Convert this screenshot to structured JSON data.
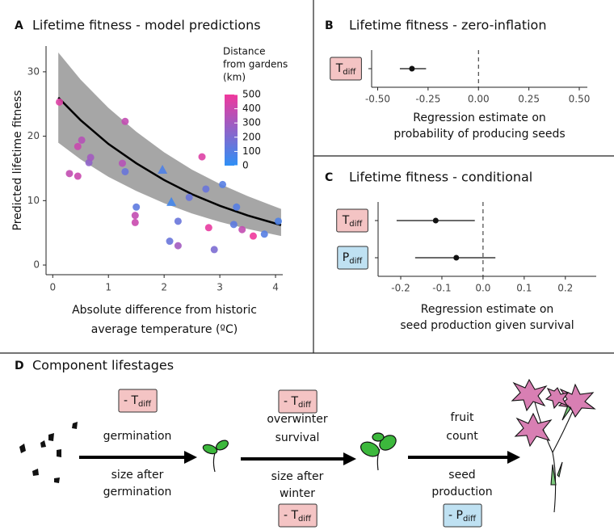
{
  "chart_data": [
    {
      "type": "scatter",
      "letter": "A",
      "title": "Lifetime fitness - model predictions",
      "x_label": [
        "Absolute difference from historic",
        "average temperature (ºC)"
      ],
      "y_label": "Predicted lifetime fitness",
      "xlim": [
        -0.12,
        4.13
      ],
      "ylim": [
        -1.5,
        34
      ],
      "xticks": [
        0,
        1,
        2,
        3,
        4
      ],
      "yticks": [
        0,
        10,
        20,
        30
      ],
      "colorbar": {
        "title": [
          "Distance",
          "from gardens",
          "(km)"
        ],
        "lim": [
          0,
          500
        ],
        "ticks": [
          0,
          100,
          200,
          300,
          400,
          500
        ],
        "colors": [
          "#2f8ff5",
          "#f0389c"
        ]
      },
      "series": [
        {
          "marker": "circle",
          "x": [
            0.12,
            0.3,
            0.45,
            0.52,
            0.45,
            0.65,
            0.68,
            1.3,
            1.25,
            1.3,
            1.5,
            1.48,
            1.48,
            2.1,
            2.25,
            2.25,
            2.45,
            2.68,
            2.75,
            2.8,
            2.9,
            3.05,
            3.25,
            3.3,
            3.4,
            3.6,
            3.8,
            4.05
          ],
          "values": [
            25.3,
            14.2,
            18.4,
            19.4,
            13.8,
            15.9,
            16.7,
            22.3,
            15.8,
            14.5,
            9.0,
            7.7,
            6.6,
            3.7,
            3.0,
            6.8,
            10.5,
            16.8,
            11.8,
            5.8,
            2.4,
            12.5,
            6.3,
            9.0,
            5.5,
            4.5,
            4.8,
            6.8
          ],
          "distance": [
            450,
            380,
            400,
            350,
            400,
            250,
            300,
            380,
            350,
            150,
            120,
            380,
            400,
            150,
            300,
            150,
            150,
            450,
            150,
            480,
            200,
            100,
            120,
            100,
            380,
            500,
            100,
            80
          ]
        },
        {
          "marker": "triangle",
          "x": [
            1.97,
            2.13
          ],
          "values": [
            14.8,
            9.8
          ],
          "distance": [
            80,
            50
          ]
        }
      ],
      "fit": {
        "color": "#000000",
        "band_color": "#a6a6a6",
        "x": [
          0.1,
          0.5,
          1.0,
          1.5,
          2.0,
          2.5,
          3.0,
          3.5,
          4.1
        ],
        "values": [
          26,
          22.5,
          18.8,
          15.8,
          13.2,
          11.0,
          9.2,
          7.7,
          6.2
        ],
        "lower": [
          19,
          16.4,
          13.7,
          11.5,
          9.6,
          8.0,
          6.7,
          5.6,
          4.5
        ],
        "upper": [
          33,
          28.8,
          24.4,
          20.7,
          17.5,
          14.8,
          12.6,
          10.7,
          8.7
        ]
      }
    },
    {
      "type": "forest",
      "letter": "B",
      "title": "Lifetime fitness - zero-inflation",
      "x_label": [
        "Regression estimate on",
        "probability of producing seeds"
      ],
      "xlim": [
        -0.53,
        0.54
      ],
      "xticks": [
        {
          "value": -0.5,
          "label": "-0.50"
        },
        {
          "value": -0.25,
          "label": "-0.25"
        },
        {
          "value": 0,
          "label": "0.00"
        },
        {
          "value": 0.25,
          "label": "0.25"
        },
        {
          "value": 0.5,
          "label": "0.50"
        }
      ],
      "reference": 0,
      "categories": [
        {
          "text": "T",
          "sub": "diff",
          "color": "#f4c4c4"
        }
      ],
      "values": [
        -0.33
      ],
      "lower": [
        -0.39
      ],
      "upper": [
        -0.26
      ]
    },
    {
      "type": "forest",
      "letter": "C",
      "title": "Lifetime fitness - conditional",
      "x_label": [
        "Regression estimate on",
        "seed production given survival"
      ],
      "xlim": [
        -0.255,
        0.275
      ],
      "xticks": [
        -0.2,
        -0.1,
        {
          "value": 0,
          "label": "0.0"
        },
        0.1,
        0.2
      ],
      "reference": 0,
      "categories": [
        {
          "text": "T",
          "sub": "diff",
          "color": "#f4c4c4"
        },
        {
          "text": "P",
          "sub": "diff",
          "color": "#bfe1f2"
        }
      ],
      "values": [
        -0.115,
        -0.065
      ],
      "lower": [
        -0.21,
        -0.165
      ],
      "upper": [
        -0.02,
        0.03
      ]
    }
  ],
  "diagram": {
    "letter": "D",
    "title": "Component lifestages",
    "stages": [
      {
        "above": [
          "germination"
        ],
        "below": [
          "size after",
          "germination"
        ],
        "top_label": {
          "text": "- T",
          "sub": "diff",
          "color": "#f4c4c4"
        }
      },
      {
        "above": [
          "overwinter",
          "survival"
        ],
        "below": [
          "size after",
          "winter"
        ],
        "top_label": {
          "text": "- T",
          "sub": "diff",
          "color": "#f4c4c4"
        },
        "bottom_label": {
          "text": "- T",
          "sub": "diff",
          "color": "#f4c4c4"
        }
      },
      {
        "above": [
          "fruit",
          "count"
        ],
        "below": [
          "seed",
          "production"
        ],
        "bottom_label": {
          "text": "- P",
          "sub": "diff",
          "color": "#bfe1f2"
        }
      }
    ]
  }
}
